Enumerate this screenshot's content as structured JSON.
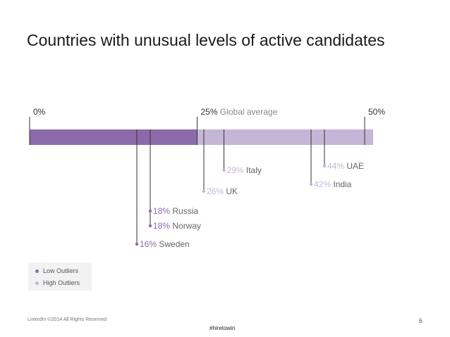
{
  "chart_data": {
    "type": "range-marker",
    "title": "Countries with unusual levels of active candidates",
    "axis": {
      "min": 0,
      "max": 50,
      "ticks": [
        {
          "value": 0,
          "label": "0%",
          "note": ""
        },
        {
          "value": 25,
          "label": "25%",
          "note": "Global average"
        },
        {
          "value": 50,
          "label": "50%",
          "note": ""
        }
      ]
    },
    "average": 25,
    "series": [
      {
        "name": "Low Outliers",
        "color": "#8b6aaa",
        "points": [
          {
            "country": "Sweden",
            "value": 16,
            "label": "16%"
          },
          {
            "country": "Norway",
            "value": 18,
            "label": "18%"
          },
          {
            "country": "Russia",
            "value": 18,
            "label": "18%"
          }
        ]
      },
      {
        "name": "High Outliers",
        "color": "#c5b5d6",
        "points": [
          {
            "country": "UK",
            "value": 26,
            "label": "26%"
          },
          {
            "country": "Italy",
            "value": 29,
            "label": "29%"
          },
          {
            "country": "India",
            "value": 42,
            "label": "42%"
          },
          {
            "country": "UAE",
            "value": 44,
            "label": "44%"
          }
        ]
      }
    ]
  },
  "legend": {
    "low_label": "Low Outliers",
    "high_label": "High Outliers",
    "low_color": "#8b6aaa",
    "high_color": "#c5b5d6"
  },
  "footer": {
    "copyright": "LinkedIn ©2014 All Rights Reserved",
    "page_number": "6",
    "hashtag": "#hiretowin"
  }
}
